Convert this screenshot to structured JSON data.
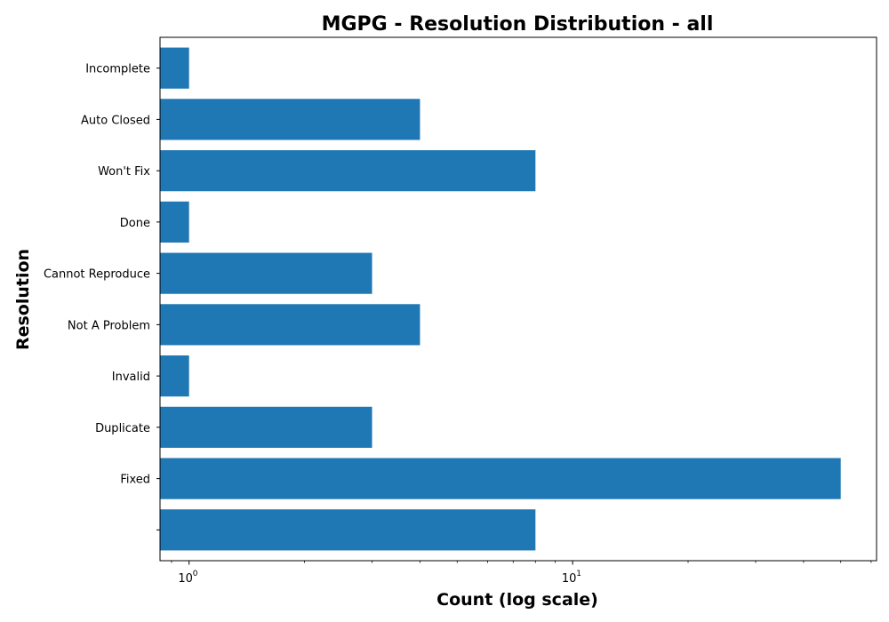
{
  "chart_data": {
    "type": "bar",
    "orientation": "horizontal",
    "title": "MGPG - Resolution Distribution - all",
    "xlabel": "Count (log scale)",
    "ylabel": "Resolution",
    "x_scale": "log",
    "xlim": [
      0.84,
      62
    ],
    "categories": [
      "",
      "Fixed",
      "Duplicate",
      "Invalid",
      "Not A Problem",
      "Cannot Reproduce",
      "Done",
      "Won't Fix",
      "Auto Closed",
      "Incomplete"
    ],
    "values": [
      8,
      50,
      3,
      1,
      4,
      3,
      1,
      8,
      4,
      1
    ],
    "x_ticks": [
      {
        "value": 1,
        "base": "10",
        "exp": "0"
      },
      {
        "value": 10,
        "base": "10",
        "exp": "1"
      }
    ],
    "bar_color": "#1f77b4",
    "grid": false,
    "legend": "none"
  }
}
